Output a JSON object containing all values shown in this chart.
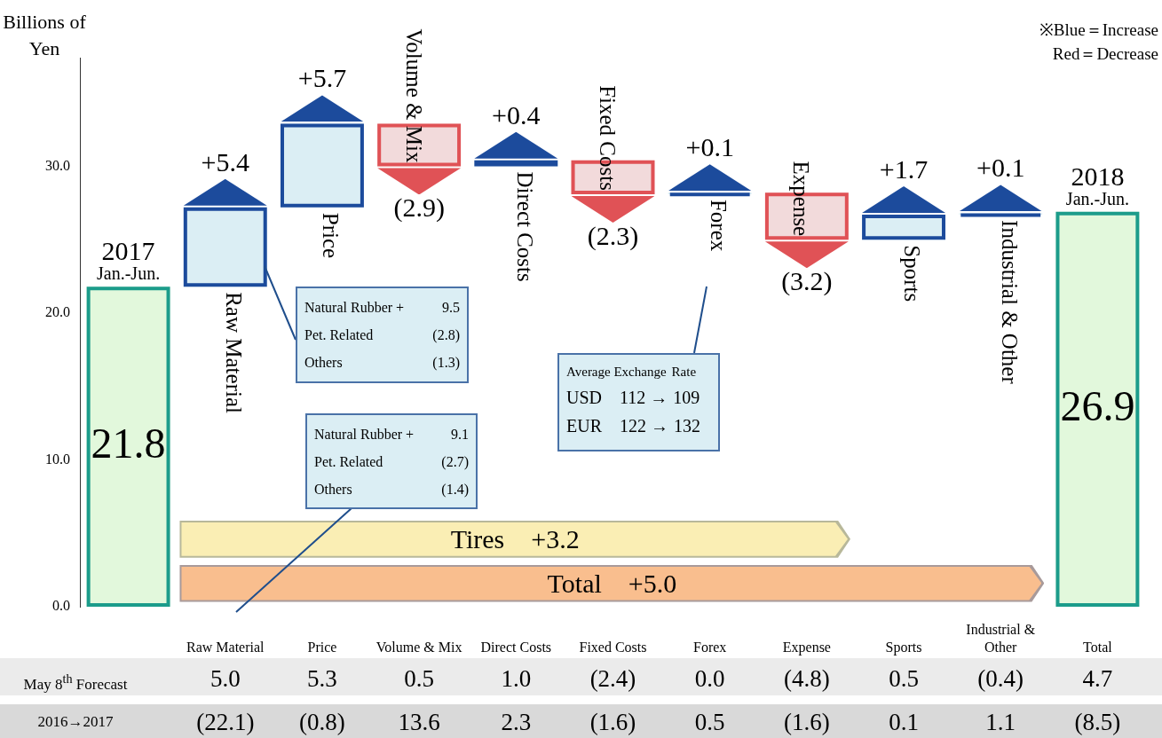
{
  "chart_data": {
    "type": "bar",
    "ylabel": "Billions of Yen",
    "categories": [
      "2017 Jan.-Jun.",
      "Raw Material",
      "Price",
      "Volume & Mix",
      "Direct Costs",
      "Fixed Costs",
      "Forex",
      "Expense",
      "Sports",
      "Industrial & Other",
      "2018 Jan.-Jun."
    ],
    "values": [
      21.8,
      5.4,
      5.7,
      -2.9,
      0.4,
      -2.3,
      0.1,
      -3.2,
      1.7,
      0.1,
      26.9
    ],
    "base": [
      0,
      21.8,
      27.2,
      32.9,
      30.0,
      30.4,
      28.1,
      28.2,
      25.0,
      26.7,
      0
    ],
    "colors": [
      "#e2f8dc",
      "#dbeef4",
      "#dbeef4",
      "#f2dadb",
      "#dbeef4",
      "#f2dadb",
      "#dbeef4",
      "#f2dadb",
      "#dbeef4",
      "#dbeef4",
      "#e2f8dc"
    ],
    "value_labels": [
      "21.8",
      "+5.4",
      "+5.7",
      "(2.9)",
      "+0.4",
      "(2.3)",
      "+0.1",
      "(3.2)",
      "+1.7",
      "+0.1",
      "26.9"
    ],
    "ylim": [
      0,
      37.4
    ],
    "yticks": [
      {
        "value": 0,
        "label": "0.0"
      },
      {
        "value": 10,
        "label": "10.0"
      },
      {
        "value": 20,
        "label": "20.0"
      },
      {
        "value": 30,
        "label": "30.0"
      }
    ],
    "grid": false,
    "annotations": [
      "※Blue＝Increase",
      "Red＝Decrease",
      "Tires　+3.2",
      "Total　+5.0",
      "Natural Rubber + 9.5",
      "Pet. Related (2.8)",
      "Others (1.3)",
      "Natural Rubber + 9.1",
      "Pet. Related (2.7)",
      "Others (1.4)",
      "Average Exchange Rate",
      "USD　112 → 109",
      "EUR　122 → 132",
      "Raw Material",
      "Price",
      "Volume & Mix",
      "Direct Costs",
      "Fixed Costs",
      "Forex",
      "Expense",
      "Sports",
      "Industrial & Other",
      "Total",
      "May 8$^{th}$ Forecast",
      "5.0",
      "5.3",
      "0.5",
      "1.0",
      "(2.4)",
      "0.0",
      "(4.8)",
      "0.5",
      "(0.4)",
      "4.7",
      "2016→2017",
      "(22.1)",
      "(0.8)",
      "13.6",
      "2.3",
      "(1.6)",
      "0.5",
      "(1.6)",
      "0.1",
      "1.1",
      "(8.5)"
    ]
  }
}
